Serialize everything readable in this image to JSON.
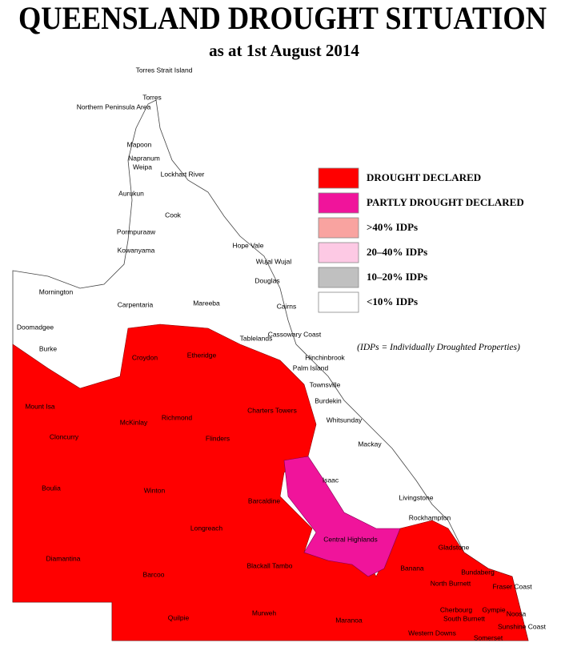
{
  "header": {
    "title": "QUEENSLAND DROUGHT SITUATION",
    "subtitle": "as at 1st August 2014"
  },
  "legend": {
    "items": [
      {
        "label": "DROUGHT DECLARED",
        "color": "#ff0000"
      },
      {
        "label": "PARTLY DROUGHT DECLARED",
        "color": "#f0149b"
      },
      {
        "label": ">40% IDPs",
        "color": "#f9a3a0"
      },
      {
        "label": "20–40% IDPs",
        "color": "#fdc9e4"
      },
      {
        "label": "10–20% IDPs",
        "color": "#c0c0c0"
      },
      {
        "label": "<10% IDPs",
        "color": "#ffffff"
      }
    ],
    "note": "(IDPs = Individually Droughted Properties)"
  },
  "regions": [
    "Torres Strait Island",
    "Torres",
    "Northern Peninsula Area",
    "Mapoon",
    "Napranum",
    "Weipa",
    "Lockhart River",
    "Aurukun",
    "Cook",
    "Pormpuraaw",
    "Kowanyama",
    "Hope Vale",
    "Wujal Wujal",
    "Douglas",
    "Mornington",
    "Carpentaria",
    "Mareeba",
    "Cairns",
    "Doomadgee",
    "Cassowary Coast",
    "Tablelands",
    "Burke",
    "Croydon",
    "Etheridge",
    "Hinchinbrook",
    "Palm Island",
    "Townsville",
    "Burdekin",
    "Mount Isa",
    "Charters Towers",
    "Whitsunday",
    "McKinlay",
    "Richmond",
    "Cloncurry",
    "Flinders",
    "Mackay",
    "Isaac",
    "Boulia",
    "Winton",
    "Livingstone",
    "Barcaldine",
    "Rockhampton",
    "Longreach",
    "Central Highlands",
    "Gladstone",
    "Diamantina",
    "Blackall Tambo",
    "Banana",
    "Bundaberg",
    "Barcoo",
    "North Burnett",
    "Fraser Coast",
    "Quilpie",
    "Murweh",
    "Maranoa",
    "Cherbourg",
    "Gympie",
    "Noosa",
    "South Burnett",
    "Sunshine Coast",
    "Western Downs",
    "Somerset"
  ]
}
